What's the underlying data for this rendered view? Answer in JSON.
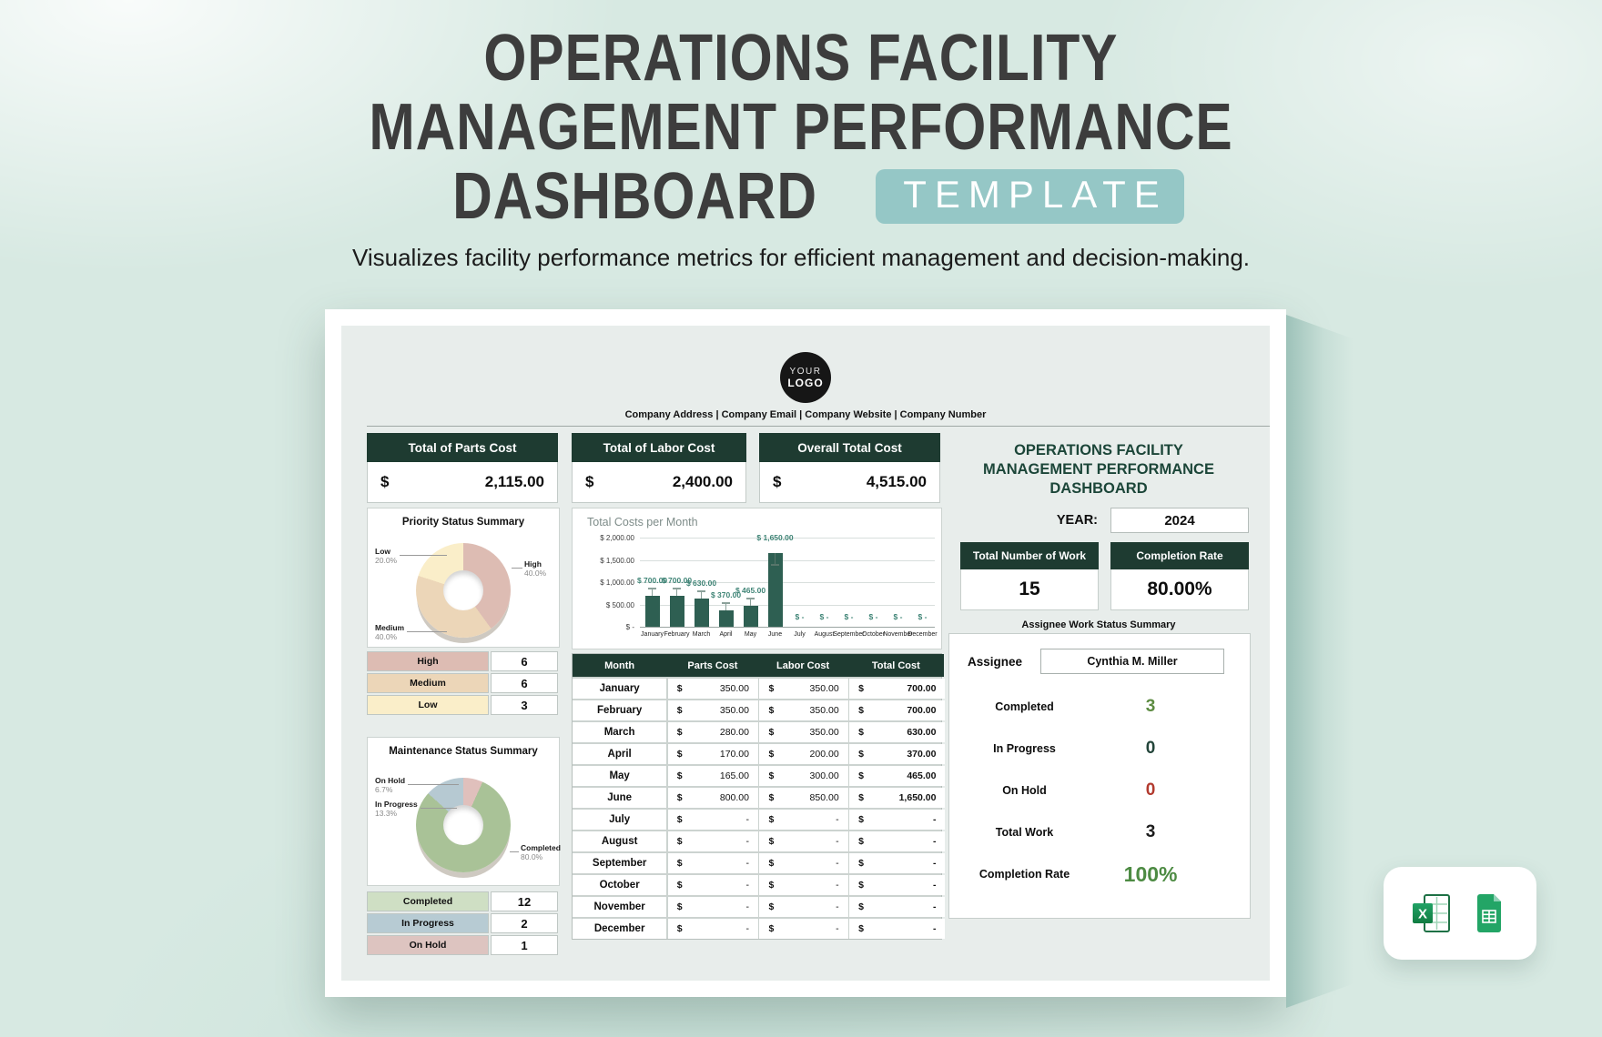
{
  "page": {
    "title_lines": [
      "OPERATIONS FACILITY",
      "MANAGEMENT PERFORMANCE",
      "DASHBOARD"
    ],
    "badge": "TEMPLATE",
    "subtitle": "Visualizes facility performance metrics for efficient management and decision-making."
  },
  "header": {
    "logo_top": "YOUR",
    "logo_bottom": "LOGO",
    "company_info": "Company Address | Company Email | Company Website | Company Number"
  },
  "kpis": [
    {
      "label": "Total of Parts Cost",
      "currency": "$",
      "value": "2,115.00"
    },
    {
      "label": "Total of Labor Cost",
      "currency": "$",
      "value": "2,400.00"
    },
    {
      "label": "Overall Total Cost",
      "currency": "$",
      "value": "4,515.00"
    }
  ],
  "chart_data": [
    {
      "id": "total_costs_per_month",
      "type": "bar",
      "title": "Total Costs per Month",
      "categories": [
        "January",
        "February",
        "March",
        "April",
        "May",
        "June",
        "July",
        "August",
        "September",
        "October",
        "November",
        "December"
      ],
      "values": [
        700,
        700,
        630,
        370,
        465,
        1650,
        0,
        0,
        0,
        0,
        0,
        0
      ],
      "bar_labels": [
        "$ 700.00",
        "$ 700.00",
        "$ 630.00",
        "$ 370.00",
        "$ 465.00",
        "$ 1,650.00",
        "$ -",
        "$ -",
        "$ -",
        "$ -",
        "$ -",
        "$ -"
      ],
      "y_ticks": [
        "$ 2,000.00",
        "$ 1,500.00",
        "$ 1,000.00",
        "$ 500.00",
        "$ -"
      ],
      "ylim": [
        0,
        2000
      ],
      "grid": true,
      "legend": "none",
      "bar_color": "#2e5f52"
    },
    {
      "id": "priority_status",
      "type": "pie",
      "title": "Priority Status Summary",
      "segments": [
        {
          "label": "High",
          "pct": 40.0,
          "color": "#ddbcb3"
        },
        {
          "label": "Medium",
          "pct": 40.0,
          "color": "#ecd6b8"
        },
        {
          "label": "Low",
          "pct": 20.0,
          "color": "#faeec9"
        }
      ],
      "callouts": [
        {
          "name": "Low",
          "pct": "20.0%",
          "pos": "a"
        },
        {
          "name": "High",
          "pct": "40.0%",
          "pos": "b"
        },
        {
          "name": "Medium",
          "pct": "40.0%",
          "pos": "c"
        }
      ]
    },
    {
      "id": "maintenance_status",
      "type": "pie",
      "title": "Maintenance Status Summary",
      "segments": [
        {
          "label": "Completed",
          "pct": 80.0,
          "color": "#a9c297"
        },
        {
          "label": "In Progress",
          "pct": 13.3,
          "color": "#b6c9d2"
        },
        {
          "label": "On Hold",
          "pct": 6.7,
          "color": "#e0c0bc"
        }
      ],
      "callouts": [
        {
          "name": "On Hold",
          "pct": "6.7%",
          "pos": "a"
        },
        {
          "name": "In Progress",
          "pct": "13.3%",
          "pos": "b"
        },
        {
          "name": "Completed",
          "pct": "80.0%",
          "pos": "c"
        }
      ]
    }
  ],
  "priority_table": [
    {
      "label": "High",
      "value": "6",
      "color": "#ddbcb3"
    },
    {
      "label": "Medium",
      "value": "6",
      "color": "#ecd6b8"
    },
    {
      "label": "Low",
      "value": "3",
      "color": "#faeec9"
    }
  ],
  "maintenance_table": [
    {
      "label": "Completed",
      "value": "12",
      "color": "#cfdfc4"
    },
    {
      "label": "In Progress",
      "value": "2",
      "color": "#b7cbd3"
    },
    {
      "label": "On Hold",
      "value": "1",
      "color": "#ddc4c0"
    }
  ],
  "cost_table": {
    "headers": [
      "Month",
      "Parts Cost",
      "Labor Cost",
      "Total Cost"
    ],
    "currency": "$",
    "rows": [
      {
        "month": "January",
        "parts": "350.00",
        "labor": "350.00",
        "total": "700.00"
      },
      {
        "month": "February",
        "parts": "350.00",
        "labor": "350.00",
        "total": "700.00"
      },
      {
        "month": "March",
        "parts": "280.00",
        "labor": "350.00",
        "total": "630.00"
      },
      {
        "month": "April",
        "parts": "170.00",
        "labor": "200.00",
        "total": "370.00"
      },
      {
        "month": "May",
        "parts": "165.00",
        "labor": "300.00",
        "total": "465.00"
      },
      {
        "month": "June",
        "parts": "800.00",
        "labor": "850.00",
        "total": "1,650.00"
      },
      {
        "month": "July",
        "parts": "-",
        "labor": "-",
        "total": "-"
      },
      {
        "month": "August",
        "parts": "-",
        "labor": "-",
        "total": "-"
      },
      {
        "month": "September",
        "parts": "-",
        "labor": "-",
        "total": "-"
      },
      {
        "month": "October",
        "parts": "-",
        "labor": "-",
        "total": "-"
      },
      {
        "month": "November",
        "parts": "-",
        "labor": "-",
        "total": "-"
      },
      {
        "month": "December",
        "parts": "-",
        "labor": "-",
        "total": "-"
      }
    ]
  },
  "right_panel": {
    "title_lines": [
      "OPERATIONS FACILITY",
      "MANAGEMENT PERFORMANCE",
      "DASHBOARD"
    ],
    "year_label": "YEAR:",
    "year_value": "2024",
    "cards": [
      {
        "label": "Total Number of Work",
        "value": "15"
      },
      {
        "label": "Completion Rate",
        "value": "80.00%"
      }
    ],
    "summary_title": "Assignee Work Status Summary",
    "assignee_label": "Assignee",
    "assignee_name": "Cynthia M. Miller",
    "stats": [
      {
        "label": "Completed",
        "value": "3",
        "color": "#5d8c42",
        "large": false
      },
      {
        "label": "In Progress",
        "value": "0",
        "color": "#23453a",
        "large": false
      },
      {
        "label": "On Hold",
        "value": "0",
        "color": "#b23a2e",
        "large": false
      },
      {
        "label": "Total Work",
        "value": "3",
        "color": "#1c1c1c",
        "large": false
      },
      {
        "label": "Completion Rate",
        "value": "100%",
        "color": "#4d8b43",
        "large": true
      }
    ]
  },
  "colors": {
    "header_green": "#1e3b31",
    "badge_teal": "#95c7c6",
    "bar_teal": "#2e5f52",
    "page_mint": "#d7e9e2"
  }
}
